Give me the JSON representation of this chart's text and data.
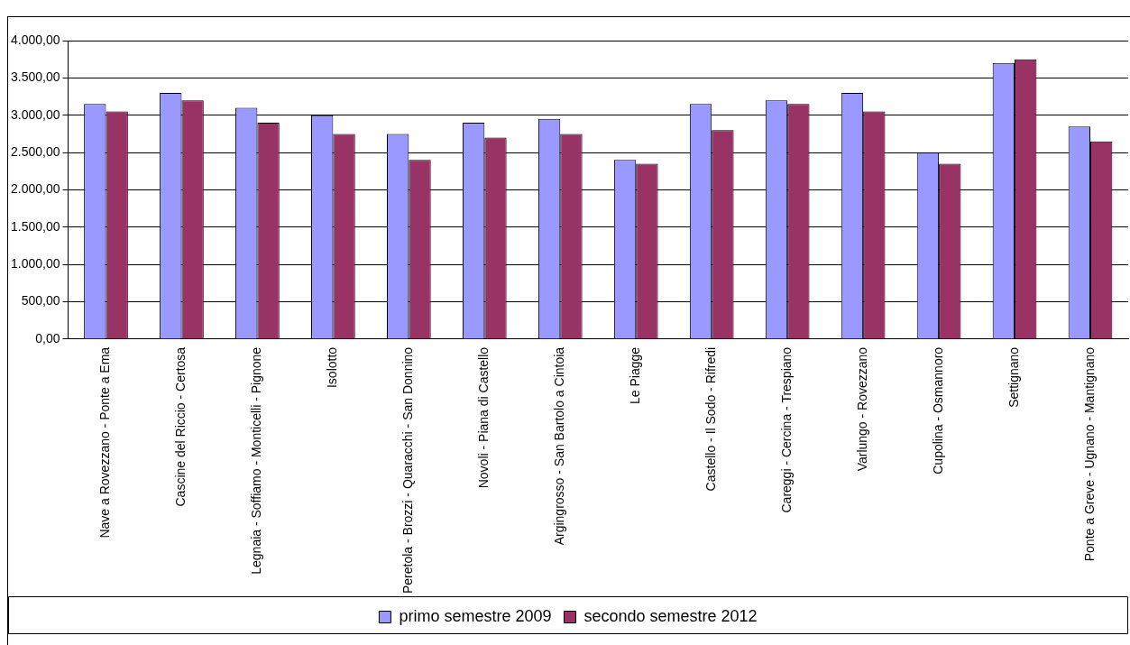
{
  "chart_data": {
    "type": "bar",
    "categories": [
      "Nave a Rovezzano - Ponte a Ema",
      "Cascine del Riccio - Certosa",
      "Legnaia - Soffiamo - Monticelli - Pignone",
      "Isolotto",
      "Peretola - Brozzi - Quaracchi - San Donnino",
      "Novoli - Piana di Castello",
      "Argingrosso - San Bartolo a Cintoia",
      "Le Piagge",
      "Castello - Il Sodo - Rifredi",
      "Careggi - Cercina - Trespiano",
      "Varlungo - Rovezzano",
      "Cupolina - Osmannoro",
      "Settignano",
      "Ponte a Greve - Ugnano - Mantignano"
    ],
    "series": [
      {
        "name": "primo semestre 2009",
        "color": "#9999ff",
        "values": [
          3150,
          3300,
          3100,
          3000,
          2750,
          2900,
          2950,
          2400,
          3150,
          3200,
          3300,
          2500,
          3700,
          2850
        ]
      },
      {
        "name": "secondo semestre 2012",
        "color": "#993366",
        "values": [
          3050,
          3200,
          2900,
          2750,
          2400,
          2700,
          2750,
          2350,
          2800,
          3150,
          3050,
          2350,
          3750,
          2650
        ]
      }
    ],
    "ylim": [
      0,
      4000
    ],
    "yticks": [
      {
        "value": 0,
        "label": "0,00"
      },
      {
        "value": 500,
        "label": "500,00"
      },
      {
        "value": 1000,
        "label": "1.000,00"
      },
      {
        "value": 1500,
        "label": "1.500,00"
      },
      {
        "value": 2000,
        "label": "2.000,00"
      },
      {
        "value": 2500,
        "label": "2.500,00"
      },
      {
        "value": 3000,
        "label": "3.000,00"
      },
      {
        "value": 3500,
        "label": "3.500,00"
      },
      {
        "value": 4000,
        "label": "4.000,00"
      }
    ],
    "grid": "y",
    "legend": "bottom"
  }
}
